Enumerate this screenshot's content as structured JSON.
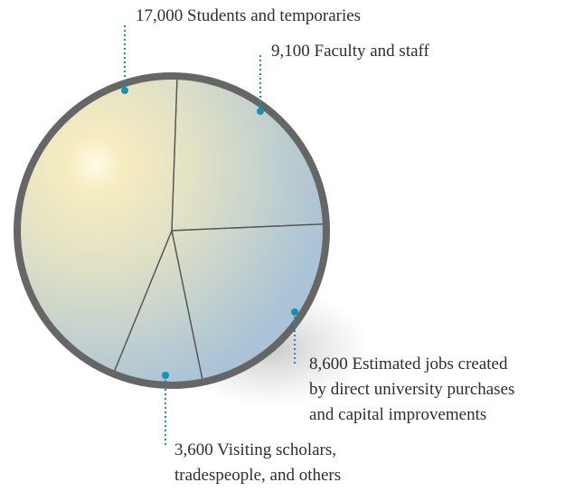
{
  "chart_data": {
    "type": "pie",
    "categories": [
      "Students and temporaries",
      "Faculty and staff",
      "Estimated jobs created\nby direct university purchases\nand capital improvements",
      "Visiting scholars,\ntradespeople, and others"
    ],
    "values": [
      17000,
      9100,
      8600,
      3600
    ],
    "value_labels": [
      "17,000",
      "9,100",
      "8,600",
      "3,600"
    ],
    "color": "#1b8fb3"
  }
}
